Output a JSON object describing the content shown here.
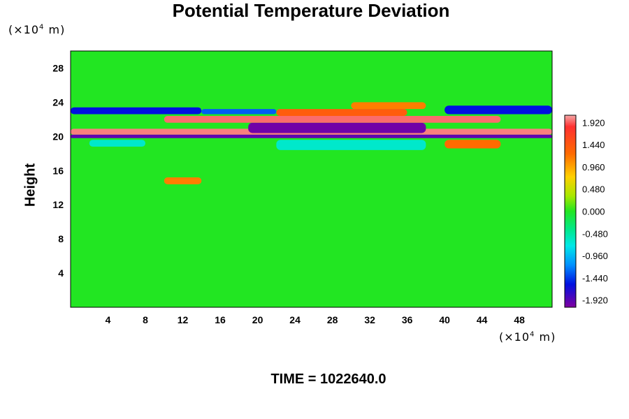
{
  "chart_data": {
    "type": "heatmap",
    "title": "Potential Temperature Deviation",
    "xlabel": "",
    "ylabel": "Height",
    "x_unit": "(×10⁴ m)",
    "y_unit": "(×10⁴ m)",
    "xlim": [
      0,
      51.5
    ],
    "ylim": [
      0,
      30
    ],
    "x_ticks": [
      4,
      8,
      12,
      16,
      20,
      24,
      28,
      32,
      36,
      40,
      44,
      48
    ],
    "y_ticks": [
      4,
      8,
      12,
      16,
      20,
      24,
      28
    ],
    "colorbar": {
      "min": -2.0,
      "max": 2.0,
      "ticks": [
        "1.920",
        "1.440",
        "0.960",
        "0.480",
        "0.000",
        "-0.480",
        "-0.960",
        "-1.440",
        "-1.920"
      ],
      "tick_values": [
        1.92,
        1.44,
        0.96,
        0.48,
        0.0,
        -0.48,
        -0.96,
        -1.44,
        -1.92
      ]
    },
    "field_description": "Near-zero (green) background with a strong alternating positive/negative layer near height 20-22 and wave activity above it.",
    "bands": [
      {
        "x0": 0,
        "x1": 51.5,
        "y0": 20.2,
        "y1": 20.9,
        "value": 1.9
      },
      {
        "x0": 0,
        "x1": 51.5,
        "y0": 19.8,
        "y1": 20.2,
        "value": -1.9
      },
      {
        "x0": 19,
        "x1": 38,
        "y0": 20.4,
        "y1": 21.6,
        "value": -1.95
      },
      {
        "x0": 10,
        "x1": 46,
        "y0": 21.6,
        "y1": 22.4,
        "value": 1.85
      },
      {
        "x0": 22,
        "x1": 36,
        "y0": 22.4,
        "y1": 23.2,
        "value": 1.4
      },
      {
        "x0": 30,
        "x1": 38,
        "y0": 23.2,
        "y1": 24.0,
        "value": 1.2
      },
      {
        "x0": 0,
        "x1": 14,
        "y0": 22.6,
        "y1": 23.4,
        "value": -1.6
      },
      {
        "x0": 40,
        "x1": 51.5,
        "y0": 22.6,
        "y1": 23.6,
        "value": -1.6
      },
      {
        "x0": 14,
        "x1": 22,
        "y0": 22.6,
        "y1": 23.2,
        "value": -1.3
      },
      {
        "x0": 2,
        "x1": 8,
        "y0": 18.8,
        "y1": 19.6,
        "value": -0.5
      },
      {
        "x0": 10,
        "x1": 14,
        "y0": 14.4,
        "y1": 15.2,
        "value": 1.2
      },
      {
        "x0": 22,
        "x1": 38,
        "y0": 18.4,
        "y1": 19.6,
        "value": -0.5
      },
      {
        "x0": 40,
        "x1": 46,
        "y0": 18.6,
        "y1": 19.6,
        "value": 1.3
      }
    ],
    "grid": false,
    "legend": "right"
  },
  "footer": {
    "time_label": "TIME = 1022640.0"
  },
  "colors": {
    "background_field": "#22e622"
  }
}
